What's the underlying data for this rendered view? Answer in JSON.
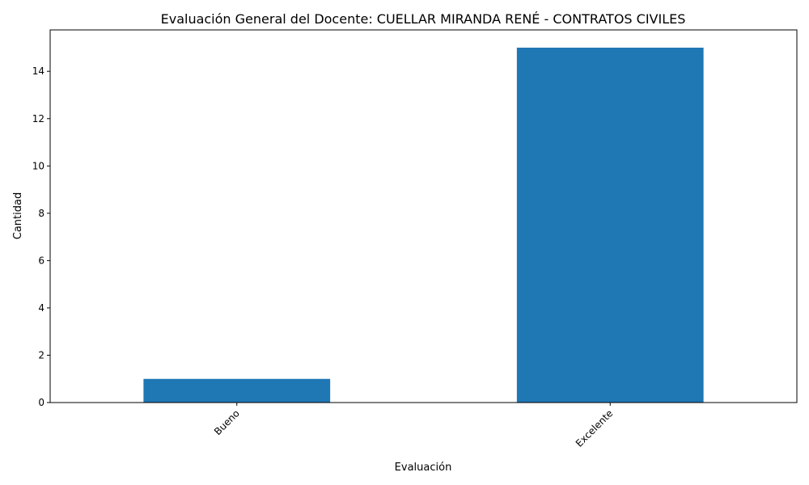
{
  "chart_data": {
    "type": "bar",
    "title": "Evaluación General del Docente: CUELLAR MIRANDA RENÉ - CONTRATOS CIVILES",
    "xlabel": "Evaluación",
    "ylabel": "Cantidad",
    "categories": [
      "Bueno",
      "Excelente"
    ],
    "values": [
      1,
      15
    ],
    "ylim": [
      0,
      15.75
    ],
    "yticks": [
      0,
      2,
      4,
      6,
      8,
      10,
      12,
      14
    ],
    "grid": false,
    "legend": "none",
    "bar_color": "#1f77b4"
  }
}
